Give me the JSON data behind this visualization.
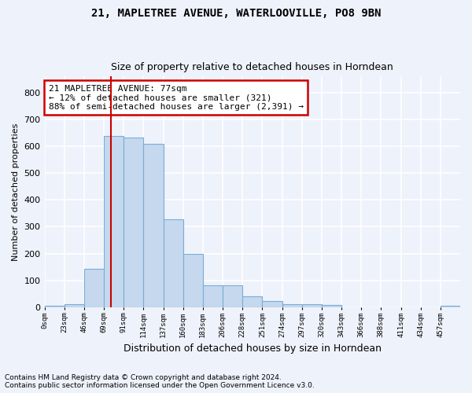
{
  "title1": "21, MAPLETREE AVENUE, WATERLOOVILLE, PO8 9BN",
  "title2": "Size of property relative to detached houses in Horndean",
  "xlabel": "Distribution of detached houses by size in Horndean",
  "ylabel": "Number of detached properties",
  "bin_labels": [
    "0sqm",
    "23sqm",
    "46sqm",
    "69sqm",
    "91sqm",
    "114sqm",
    "137sqm",
    "160sqm",
    "183sqm",
    "206sqm",
    "228sqm",
    "251sqm",
    "274sqm",
    "297sqm",
    "320sqm",
    "343sqm",
    "366sqm",
    "388sqm",
    "411sqm",
    "434sqm",
    "457sqm"
  ],
  "bar_heights": [
    5,
    10,
    143,
    637,
    633,
    608,
    328,
    200,
    83,
    83,
    42,
    23,
    10,
    10,
    8,
    0,
    0,
    0,
    0,
    0,
    5
  ],
  "bar_color": "#c5d8ee",
  "bar_edgecolor": "#7aadd4",
  "bar_linewidth": 0.8,
  "vline_x": 77,
  "vline_color": "#cc0000",
  "vline_linewidth": 1.5,
  "ylim": [
    0,
    860
  ],
  "yticks": [
    0,
    100,
    200,
    300,
    400,
    500,
    600,
    700,
    800
  ],
  "annotation_text": "21 MAPLETREE AVENUE: 77sqm\n← 12% of detached houses are smaller (321)\n88% of semi-detached houses are larger (2,391) →",
  "annotation_box_color": "white",
  "annotation_box_edgecolor": "#cc0000",
  "footnote1": "Contains HM Land Registry data © Crown copyright and database right 2024.",
  "footnote2": "Contains public sector information licensed under the Open Government Licence v3.0.",
  "background_color": "#eef2fb",
  "grid_color": "#ffffff",
  "bin_width": 23,
  "n_bins": 21
}
